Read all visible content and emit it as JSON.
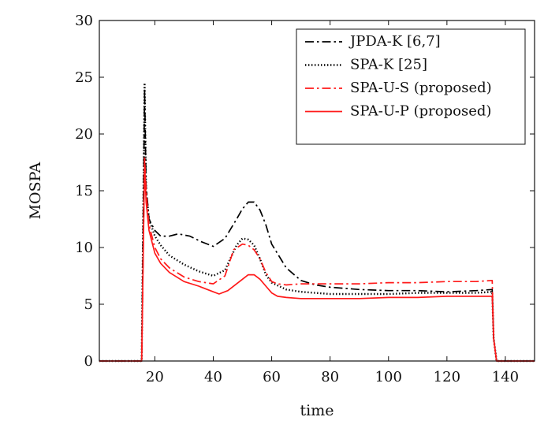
{
  "chart_data": {
    "type": "line",
    "title": "",
    "xlabel": "time",
    "ylabel": "MOSPA",
    "xlim": [
      1,
      150
    ],
    "ylim": [
      0,
      30
    ],
    "xticks": [
      20,
      40,
      60,
      80,
      100,
      120,
      140
    ],
    "yticks": [
      0,
      5,
      10,
      15,
      20,
      25,
      30
    ],
    "grid": false,
    "legend_position": "top-right",
    "series": [
      {
        "name": "JPDA-K [6,7]",
        "color": "#000000",
        "dash": "dashdot",
        "x": [
          1,
          10,
          15,
          15.5,
          16.5,
          17,
          18,
          20,
          22,
          25,
          28,
          32,
          36,
          40,
          44,
          48,
          50,
          52,
          54,
          56,
          58,
          60,
          65,
          70,
          75,
          80,
          90,
          100,
          110,
          120,
          130,
          135.5,
          136,
          137,
          140,
          150
        ],
        "y": [
          0,
          0,
          0,
          0,
          24.0,
          15.5,
          12.5,
          11.5,
          11.0,
          11.0,
          11.2,
          11.0,
          10.5,
          10.1,
          10.8,
          12.5,
          13.4,
          14.0,
          14.0,
          13.3,
          12.0,
          10.3,
          8.2,
          7.1,
          6.7,
          6.5,
          6.3,
          6.2,
          6.2,
          6.1,
          6.2,
          6.3,
          2.0,
          0,
          0,
          0
        ]
      },
      {
        "name": "SPA-K [25]",
        "color": "#000000",
        "dash": "dotted",
        "x": [
          1,
          10,
          15,
          15.5,
          16.5,
          17,
          18,
          20,
          22,
          25,
          30,
          35,
          40,
          44,
          48,
          50,
          52,
          54,
          56,
          58,
          60,
          65,
          70,
          75,
          80,
          90,
          100,
          110,
          120,
          130,
          135.5,
          136,
          137,
          140,
          150
        ],
        "y": [
          0,
          0,
          0,
          0,
          24.5,
          15.0,
          12.5,
          11.0,
          10.2,
          9.3,
          8.5,
          7.9,
          7.5,
          8.0,
          10.2,
          10.8,
          10.7,
          10.2,
          9.0,
          7.6,
          6.9,
          6.3,
          6.1,
          6.0,
          5.9,
          5.9,
          5.9,
          6.0,
          6.0,
          6.0,
          6.1,
          2.0,
          0,
          0,
          0
        ]
      },
      {
        "name": "SPA-U-S (proposed)",
        "color": "#ff1a1a",
        "dash": "dashdot",
        "x": [
          1,
          10,
          15,
          15.5,
          16.5,
          17,
          18,
          20,
          22,
          25,
          30,
          35,
          40,
          44,
          47,
          50,
          52,
          54,
          56,
          58,
          60,
          62,
          65,
          70,
          75,
          80,
          90,
          100,
          110,
          120,
          130,
          135.5,
          136,
          137,
          140,
          150
        ],
        "y": [
          0,
          0,
          0,
          0,
          18.0,
          15.0,
          12.0,
          10.0,
          9.0,
          8.2,
          7.4,
          7.0,
          6.8,
          7.5,
          9.8,
          10.3,
          10.2,
          9.8,
          9.0,
          7.8,
          7.0,
          6.8,
          6.7,
          6.8,
          6.8,
          6.8,
          6.8,
          6.9,
          6.9,
          7.0,
          7.0,
          7.1,
          2.0,
          0,
          0,
          0
        ]
      },
      {
        "name": "SPA-U-P (proposed)",
        "color": "#ff1a1a",
        "dash": "solid",
        "x": [
          1,
          10,
          15,
          15.5,
          16.5,
          17,
          18,
          20,
          22,
          25,
          30,
          35,
          40,
          42,
          45,
          48,
          50,
          52,
          54,
          56,
          58,
          60,
          62,
          65,
          70,
          75,
          80,
          90,
          100,
          110,
          120,
          130,
          135.5,
          136,
          137,
          140,
          150
        ],
        "y": [
          0,
          0,
          0,
          0,
          17.5,
          14.0,
          11.5,
          9.5,
          8.6,
          7.8,
          7.0,
          6.6,
          6.1,
          5.9,
          6.2,
          6.8,
          7.2,
          7.6,
          7.6,
          7.2,
          6.6,
          6.0,
          5.7,
          5.6,
          5.5,
          5.5,
          5.5,
          5.5,
          5.6,
          5.6,
          5.7,
          5.7,
          5.7,
          2.0,
          0,
          0,
          0
        ]
      }
    ]
  }
}
